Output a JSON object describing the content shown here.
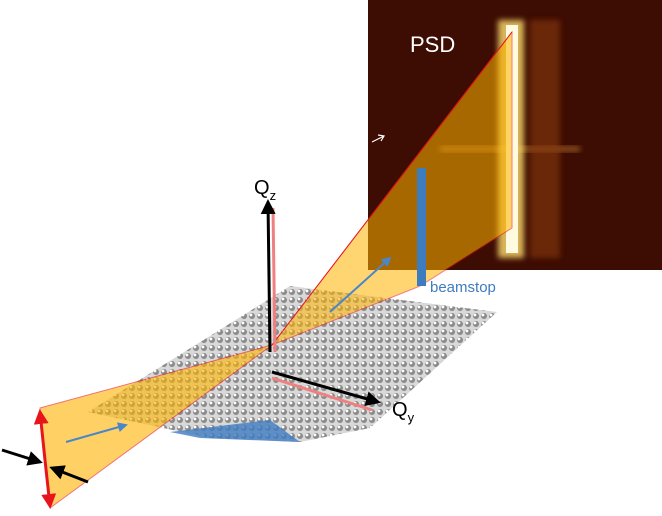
{
  "detector": {
    "label": "PSD"
  },
  "axes": {
    "qz": {
      "label": "Q",
      "subscript": "z"
    },
    "qy": {
      "label": "Q",
      "subscript": "y"
    }
  },
  "beamstop": {
    "label": "beamstop"
  }
}
